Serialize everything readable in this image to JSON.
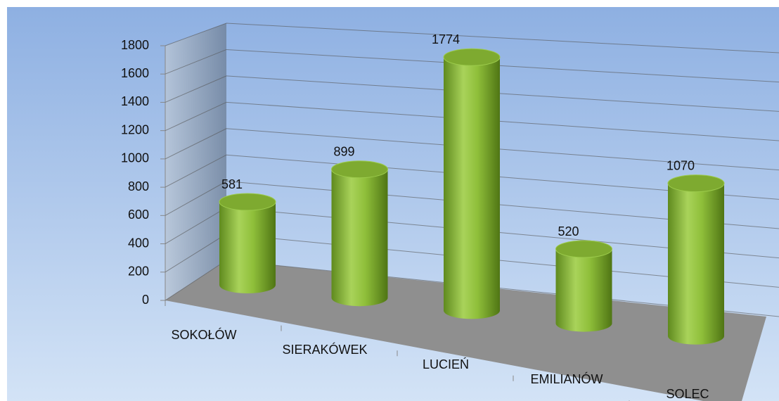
{
  "chart_data": {
    "type": "bar3d",
    "categories": [
      "SOKOŁÓW",
      "SIERAKÓWEK",
      "LUCIEŃ",
      "EMILIANÓW",
      "SOLEC"
    ],
    "values": [
      581,
      899,
      1774,
      520,
      1070
    ],
    "color": "#8fbf3a",
    "ylim": [
      0,
      1800
    ],
    "yticks": [
      0,
      200,
      400,
      600,
      800,
      1000,
      1200,
      1400,
      1600,
      1800
    ],
    "grid": true
  }
}
